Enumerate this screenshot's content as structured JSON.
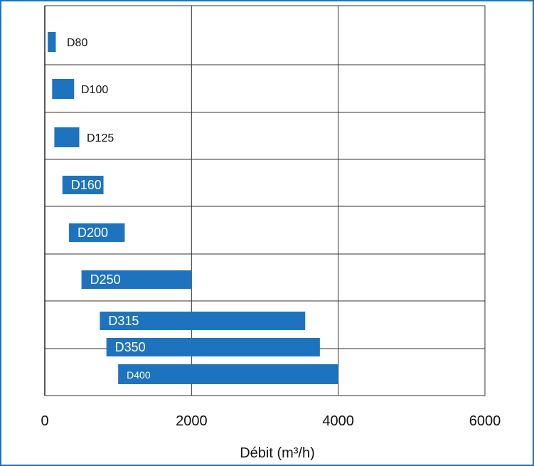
{
  "chart_data": {
    "type": "bar",
    "orientation": "horizontal-range",
    "title": "",
    "xlabel": "Débit (m³/h)",
    "ylabel": "",
    "xlim": [
      0,
      6000
    ],
    "xticks": [
      "0",
      "2000",
      "4000",
      "6000"
    ],
    "grid": true,
    "legend": "none",
    "bar_color": "#1e73be",
    "frame_color": "#1e73be",
    "categories": [
      "D80",
      "D100",
      "D125",
      "D160",
      "D200",
      "D250",
      "D315",
      "D350",
      "D400"
    ],
    "ranges": [
      {
        "name": "D80",
        "start": 40,
        "end": 150
      },
      {
        "name": "D100",
        "start": 100,
        "end": 400
      },
      {
        "name": "D125",
        "start": 130,
        "end": 470
      },
      {
        "name": "D160",
        "start": 240,
        "end": 800
      },
      {
        "name": "D200",
        "start": 330,
        "end": 1090
      },
      {
        "name": "D250",
        "start": 500,
        "end": 2000
      },
      {
        "name": "D315",
        "start": 750,
        "end": 3550
      },
      {
        "name": "D350",
        "start": 840,
        "end": 3750
      },
      {
        "name": "D400",
        "start": 1000,
        "end": 4000
      }
    ]
  }
}
